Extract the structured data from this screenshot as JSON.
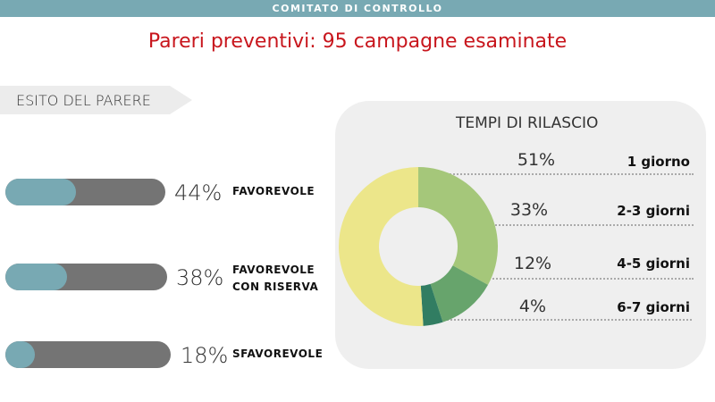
{
  "header": {
    "section": "COMITATO DI CONTROLLO",
    "title": "Pareri preventivi: 95 campagne esaminate"
  },
  "esito": {
    "heading": "ESITO DEL PARERE",
    "items": [
      {
        "pct_label": "44%",
        "value": 44,
        "label_lines": [
          "FAVOREVOLE"
        ]
      },
      {
        "pct_label": "38%",
        "value": 38,
        "label_lines": [
          "FAVOREVOLE",
          "CON RISERVA"
        ]
      },
      {
        "pct_label": "18%",
        "value": 18,
        "label_lines": [
          "SFAVOREVOLE"
        ]
      }
    ]
  },
  "chart_data": {
    "type": "pie",
    "title": "TEMPI DI RILASCIO",
    "categories": [
      "1 giorno",
      "2-3 giorni",
      "4-5 giorni",
      "6-7 giorni"
    ],
    "values": [
      51,
      33,
      12,
      4
    ],
    "pct_labels": [
      "51%",
      "33%",
      "12%",
      "4%"
    ],
    "colors": [
      "#ece68a",
      "#a5c77a",
      "#67a46c",
      "#317d62"
    ]
  }
}
